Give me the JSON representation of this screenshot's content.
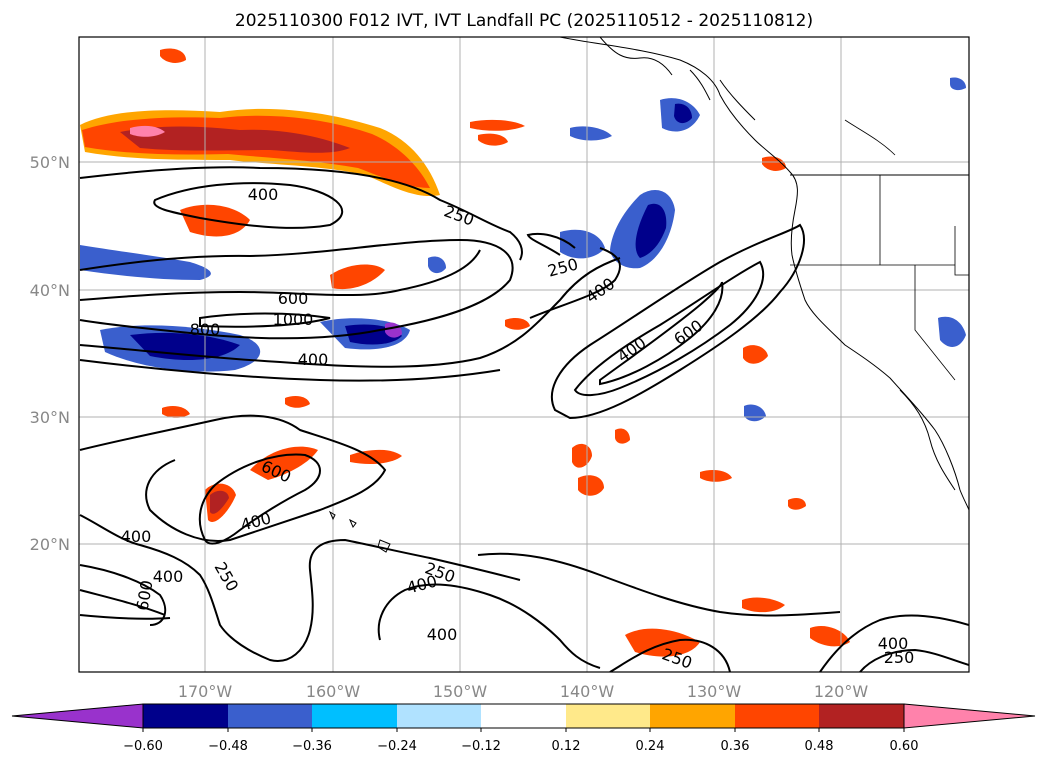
{
  "title": "2025110300 F012 IVT, IVT Landfall PC (2025110512 - 2025110812)",
  "map": {
    "lat_labels": [
      "50°N",
      "40°N",
      "30°N",
      "20°N"
    ],
    "lon_labels": [
      "170°W",
      "160°W",
      "150°W",
      "140°W",
      "130°W",
      "120°W"
    ],
    "contour_labels": [
      "400",
      "250",
      "250",
      "600",
      "1000",
      "800",
      "400",
      "400",
      "400",
      "600",
      "600",
      "400",
      "400",
      "400",
      "600",
      "250",
      "250",
      "400",
      "400",
      "250",
      "400",
      "250"
    ],
    "colors": {
      "gridline": "#b0b0b0",
      "coast": "#000000",
      "contour": "#000000"
    }
  },
  "colorbar": {
    "ticks": [
      "−0.60",
      "−0.48",
      "−0.36",
      "−0.24",
      "−0.12",
      "0.12",
      "0.24",
      "0.36",
      "0.48",
      "0.60"
    ],
    "colors": [
      "#9932cc",
      "#00008b",
      "#3a5fcd",
      "#00bfff",
      "#b0e2ff",
      "#ffffff",
      "#ffe98a",
      "#ffa500",
      "#ff4500",
      "#b22222",
      "#ff82ab"
    ]
  }
}
